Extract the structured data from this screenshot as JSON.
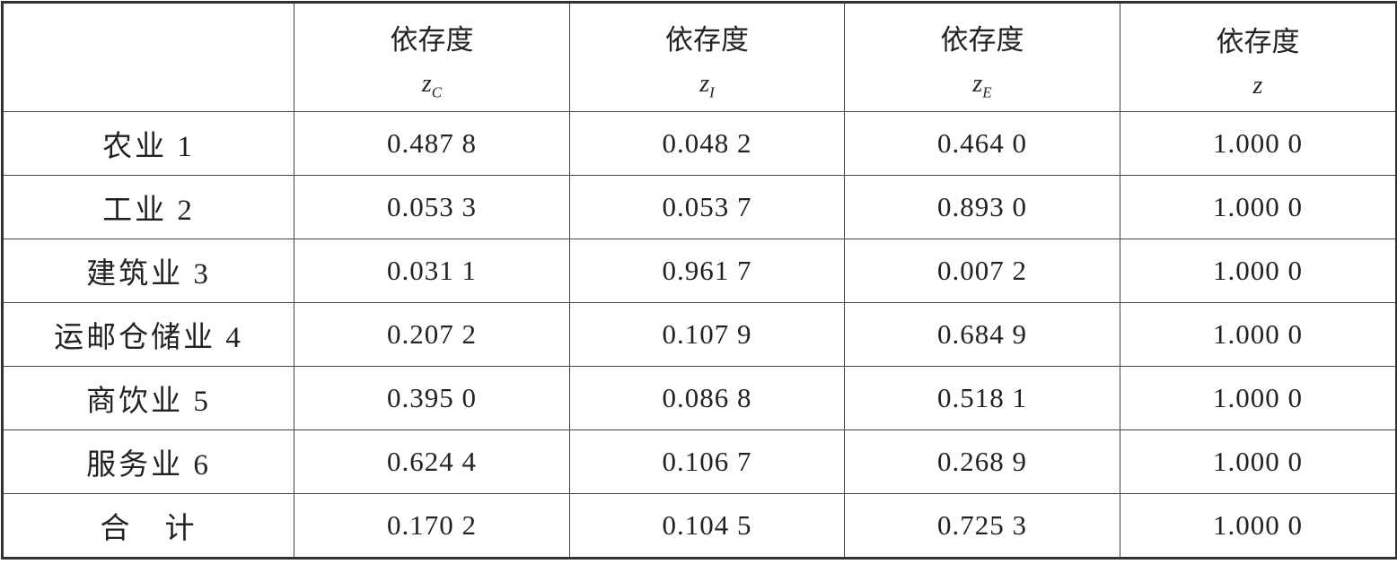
{
  "table": {
    "columns": [
      {
        "label": "依存度",
        "symbol": "z",
        "subscript": "C"
      },
      {
        "label": "依存度",
        "symbol": "z",
        "subscript": "I"
      },
      {
        "label": "依存度",
        "symbol": "z",
        "subscript": "E"
      },
      {
        "label": "依存度",
        "symbol": "z"
      }
    ],
    "rows": [
      [
        "农业 1",
        "0.487 8",
        "0.048 2",
        "0.464 0",
        "1.000 0"
      ],
      [
        "工业 2",
        "0.053 3",
        "0.053 7",
        "0.893 0",
        "1.000 0"
      ],
      [
        "建筑业 3",
        "0.031 1",
        "0.961 7",
        "0.007 2",
        "1.000 0"
      ],
      [
        "运邮仓储业 4",
        "0.207 2",
        "0.107 9",
        "0.684 9",
        "1.000 0"
      ],
      [
        "商饮业 5",
        "0.395 0",
        "0.086 8",
        "0.518 1",
        "1.000 0"
      ],
      [
        "服务业 6",
        "0.624 4",
        "0.106 7",
        "0.268 9",
        "1.000 0"
      ],
      [
        "合　计",
        "0.170 2",
        "0.104 5",
        "0.725 3",
        "1.000 0"
      ]
    ]
  }
}
